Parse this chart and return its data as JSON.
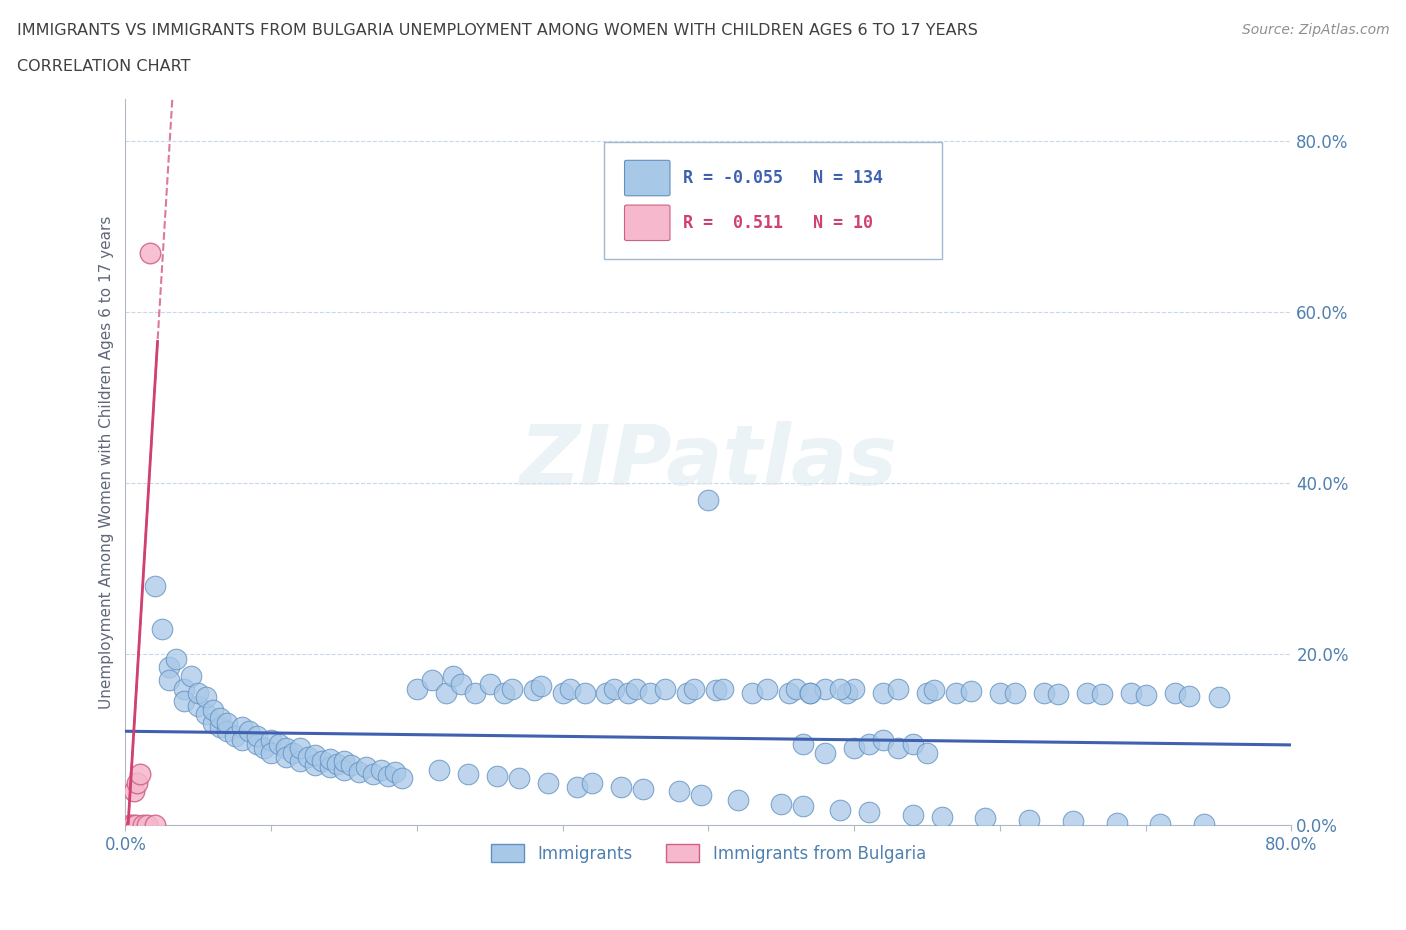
{
  "title_line1": "IMMIGRANTS VS IMMIGRANTS FROM BULGARIA UNEMPLOYMENT AMONG WOMEN WITH CHILDREN AGES 6 TO 17 YEARS",
  "title_line2": "CORRELATION CHART",
  "source": "Source: ZipAtlas.com",
  "ylabel": "Unemployment Among Women with Children Ages 6 to 17 years",
  "xlim": [
    0.0,
    0.8
  ],
  "ylim": [
    0.0,
    0.85
  ],
  "xticks": [
    0.0,
    0.1,
    0.2,
    0.3,
    0.4,
    0.5,
    0.6,
    0.7,
    0.8
  ],
  "xticklabels": [
    "0.0%",
    "",
    "",
    "",
    "",
    "",
    "",
    "",
    "80.0%"
  ],
  "yticks": [
    0.0,
    0.2,
    0.4,
    0.6,
    0.8
  ],
  "yticklabels": [
    "0.0%",
    "20.0%",
    "40.0%",
    "60.0%",
    "80.0%"
  ],
  "immigrants_color": "#a8c8e8",
  "immigrants_edge_color": "#6090c0",
  "bulgaria_color": "#f5b8cc",
  "bulgaria_edge_color": "#d06080",
  "trend_immigrants_color": "#4060b0",
  "trend_bulgaria_color": "#d04070",
  "R_immigrants": -0.055,
  "N_immigrants": 134,
  "R_bulgaria": 0.511,
  "N_bulgaria": 10,
  "legend_label_immigrants": "Immigrants",
  "legend_label_bulgaria": "Immigrants from Bulgaria",
  "watermark_text": "ZIPatlas",
  "background_color": "#ffffff",
  "grid_color": "#c8d8e8",
  "title_color": "#404040",
  "tick_color": "#5080b0",
  "imm_x": [
    0.02,
    0.025,
    0.03,
    0.03,
    0.035,
    0.04,
    0.04,
    0.045,
    0.05,
    0.05,
    0.055,
    0.055,
    0.06,
    0.06,
    0.065,
    0.065,
    0.07,
    0.07,
    0.075,
    0.08,
    0.08,
    0.085,
    0.09,
    0.09,
    0.095,
    0.1,
    0.1,
    0.105,
    0.11,
    0.11,
    0.115,
    0.12,
    0.12,
    0.125,
    0.13,
    0.13,
    0.135,
    0.14,
    0.14,
    0.145,
    0.15,
    0.15,
    0.155,
    0.16,
    0.165,
    0.17,
    0.175,
    0.18,
    0.185,
    0.19,
    0.2,
    0.21,
    0.215,
    0.22,
    0.225,
    0.23,
    0.235,
    0.24,
    0.25,
    0.255,
    0.26,
    0.265,
    0.27,
    0.28,
    0.285,
    0.29,
    0.3,
    0.305,
    0.31,
    0.315,
    0.32,
    0.33,
    0.335,
    0.34,
    0.345,
    0.35,
    0.355,
    0.36,
    0.37,
    0.38,
    0.385,
    0.39,
    0.395,
    0.4,
    0.405,
    0.41,
    0.42,
    0.43,
    0.44,
    0.45,
    0.455,
    0.46,
    0.465,
    0.47,
    0.48,
    0.49,
    0.495,
    0.5,
    0.51,
    0.52,
    0.53,
    0.54,
    0.55,
    0.555,
    0.56,
    0.57,
    0.58,
    0.59,
    0.6,
    0.61,
    0.62,
    0.63,
    0.64,
    0.65,
    0.66,
    0.67,
    0.68,
    0.69,
    0.7,
    0.71,
    0.72,
    0.73,
    0.74,
    0.75,
    0.465,
    0.47,
    0.48,
    0.49,
    0.5,
    0.51,
    0.52,
    0.53,
    0.54,
    0.55
  ],
  "imm_y": [
    0.28,
    0.23,
    0.185,
    0.17,
    0.195,
    0.16,
    0.145,
    0.175,
    0.14,
    0.155,
    0.13,
    0.15,
    0.12,
    0.135,
    0.115,
    0.125,
    0.11,
    0.12,
    0.105,
    0.115,
    0.1,
    0.11,
    0.095,
    0.105,
    0.09,
    0.1,
    0.085,
    0.095,
    0.09,
    0.08,
    0.085,
    0.075,
    0.09,
    0.08,
    0.07,
    0.082,
    0.075,
    0.068,
    0.078,
    0.072,
    0.065,
    0.075,
    0.07,
    0.062,
    0.068,
    0.06,
    0.065,
    0.058,
    0.062,
    0.055,
    0.16,
    0.17,
    0.065,
    0.155,
    0.175,
    0.165,
    0.06,
    0.155,
    0.165,
    0.058,
    0.155,
    0.16,
    0.055,
    0.158,
    0.163,
    0.05,
    0.155,
    0.16,
    0.045,
    0.155,
    0.05,
    0.155,
    0.16,
    0.045,
    0.155,
    0.16,
    0.042,
    0.155,
    0.16,
    0.04,
    0.155,
    0.16,
    0.035,
    0.38,
    0.158,
    0.16,
    0.03,
    0.155,
    0.16,
    0.025,
    0.155,
    0.16,
    0.022,
    0.155,
    0.16,
    0.018,
    0.155,
    0.16,
    0.015,
    0.155,
    0.16,
    0.012,
    0.155,
    0.158,
    0.01,
    0.155,
    0.157,
    0.008,
    0.155,
    0.155,
    0.006,
    0.155,
    0.154,
    0.005,
    0.155,
    0.153,
    0.003,
    0.155,
    0.152,
    0.002,
    0.155,
    0.151,
    0.001,
    0.15,
    0.095,
    0.155,
    0.085,
    0.16,
    0.09,
    0.095,
    0.1,
    0.09,
    0.095,
    0.085
  ],
  "bul_x": [
    0.003,
    0.005,
    0.006,
    0.007,
    0.008,
    0.01,
    0.012,
    0.015,
    0.017,
    0.02
  ],
  "bul_y": [
    0.0,
    0.0,
    0.04,
    0.0,
    0.05,
    0.06,
    0.0,
    0.0,
    0.67,
    0.0
  ],
  "trend_imm_slope": -0.02,
  "trend_imm_intercept": 0.11,
  "trend_bul_slope": 28.0,
  "trend_bul_intercept": -0.05
}
